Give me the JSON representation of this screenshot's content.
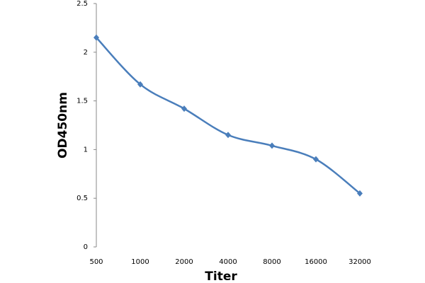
{
  "chart_data": {
    "type": "line",
    "x_label": "Titer",
    "y_label": "OD450nm",
    "categories": [
      "500",
      "1000",
      "2000",
      "4000",
      "8000",
      "16000",
      "32000"
    ],
    "series": [
      {
        "name": "OD450nm",
        "color": "#4a7ebb",
        "values": [
          2.15,
          1.67,
          1.42,
          1.15,
          1.04,
          0.9,
          0.55
        ]
      }
    ],
    "ylim": [
      0,
      2.5
    ],
    "yticks": [
      0,
      0.5,
      1,
      1.5,
      2,
      2.5
    ],
    "grid": false,
    "smooth": true,
    "marker": "diamond"
  }
}
